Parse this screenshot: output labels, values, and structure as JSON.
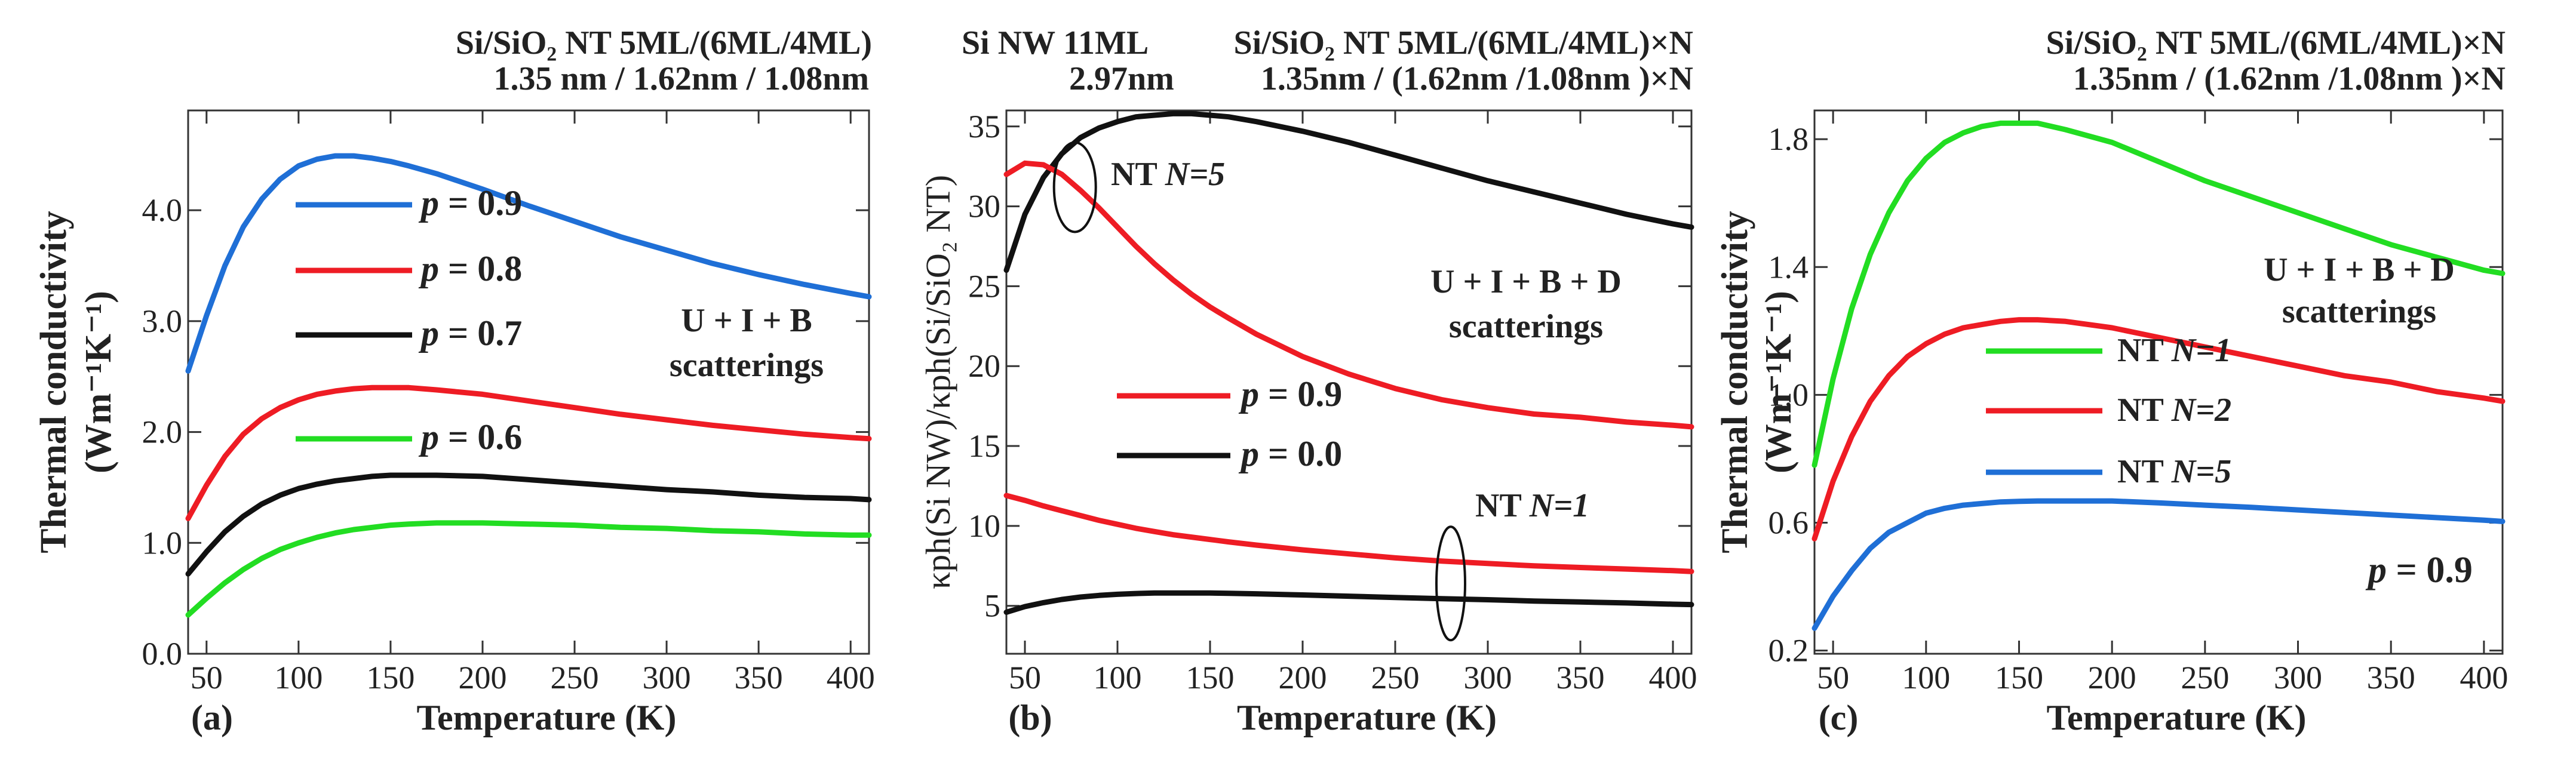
{
  "colors": {
    "blue": "#1f6fd6",
    "red": "#ee1c24",
    "black": "#111111",
    "green": "#22dd22"
  },
  "chart_data": [
    {
      "type": "line",
      "panel_label": "(a)",
      "title_line1": "Si/SiO₂ NT  5ML/(6ML/4ML)",
      "title_line2": "1.35 nm / 1.62nm  / 1.08nm",
      "xlabel": "Temperature (K)",
      "ylabel": "Thermal conductivity",
      "ylabel_units": "(Wm⁻¹K⁻¹)",
      "xlim": [
        40,
        410
      ],
      "ylim": [
        0,
        4.9
      ],
      "xticks": [
        50,
        100,
        150,
        200,
        250,
        300,
        350,
        400
      ],
      "yticks": [
        0,
        1,
        2,
        3,
        4
      ],
      "yticklabels": [
        "0.0",
        "1.0",
        "2.0",
        "3.0",
        "4.0"
      ],
      "annotation": [
        "U + I + B",
        "scatterings"
      ],
      "x": [
        40,
        50,
        60,
        70,
        80,
        90,
        100,
        110,
        120,
        130,
        140,
        150,
        160,
        175,
        200,
        225,
        250,
        275,
        300,
        325,
        350,
        375,
        400,
        410
      ],
      "series": [
        {
          "name": "p = 0.9",
          "legend_prefix": "p",
          "legend_value": " = 0.9",
          "color": "#1f6fd6",
          "values": [
            2.55,
            3.05,
            3.5,
            3.85,
            4.1,
            4.28,
            4.4,
            4.46,
            4.49,
            4.49,
            4.47,
            4.44,
            4.4,
            4.33,
            4.19,
            4.04,
            3.9,
            3.76,
            3.64,
            3.52,
            3.42,
            3.33,
            3.25,
            3.22
          ]
        },
        {
          "name": "p = 0.8",
          "legend_prefix": "p",
          "legend_value": " = 0.8",
          "color": "#ee1c24",
          "values": [
            1.22,
            1.52,
            1.78,
            1.98,
            2.12,
            2.22,
            2.29,
            2.34,
            2.37,
            2.39,
            2.4,
            2.4,
            2.4,
            2.38,
            2.34,
            2.28,
            2.22,
            2.16,
            2.11,
            2.06,
            2.02,
            1.98,
            1.95,
            1.94
          ]
        },
        {
          "name": "p = 0.7",
          "legend_prefix": "p",
          "legend_value": " = 0.7",
          "color": "#111111",
          "values": [
            0.72,
            0.92,
            1.1,
            1.24,
            1.35,
            1.43,
            1.49,
            1.53,
            1.56,
            1.58,
            1.6,
            1.61,
            1.61,
            1.61,
            1.6,
            1.57,
            1.54,
            1.51,
            1.48,
            1.46,
            1.43,
            1.41,
            1.4,
            1.39
          ]
        },
        {
          "name": "p = 0.6",
          "legend_prefix": "p",
          "legend_value": " = 0.6",
          "color": "#22dd22",
          "values": [
            0.35,
            0.5,
            0.64,
            0.76,
            0.86,
            0.94,
            1.0,
            1.05,
            1.09,
            1.12,
            1.14,
            1.16,
            1.17,
            1.18,
            1.18,
            1.17,
            1.16,
            1.14,
            1.13,
            1.11,
            1.1,
            1.08,
            1.07,
            1.07
          ]
        }
      ]
    },
    {
      "type": "line",
      "panel_label": "(b)",
      "title_left_line1": "Si NW 11ML",
      "title_left_line2": "2.97nm",
      "title_right_line1": "Si/SiO₂ NT  5ML/(6ML/4ML)×N",
      "title_right_line2": "1.35nm / (1.62nm /1.08nm )×N",
      "xlabel": "Temperature (K)",
      "ylabel": "κph(Si NW)/κph(Si/SiO₂ NT)",
      "xlim": [
        40,
        410
      ],
      "ylim": [
        2,
        36
      ],
      "xticks": [
        50,
        100,
        150,
        200,
        250,
        300,
        350,
        400
      ],
      "yticks": [
        5,
        10,
        15,
        20,
        25,
        30,
        35
      ],
      "yticklabels": [
        "5",
        "10",
        "15",
        "20",
        "25",
        "30",
        "35"
      ],
      "annotation": [
        "U + I + B + D",
        "scatterings"
      ],
      "group_labels": [
        "NT N=5",
        "NT N=1"
      ],
      "x": [
        40,
        50,
        60,
        70,
        80,
        90,
        100,
        110,
        120,
        130,
        140,
        150,
        160,
        175,
        200,
        225,
        250,
        275,
        300,
        325,
        350,
        375,
        400,
        410
      ],
      "series": [
        {
          "name": "p = 0.0 (NT N=5)",
          "legend_prefix": "p",
          "legend_value": " = 0.0",
          "color": "#111111",
          "values": [
            26,
            29.5,
            31.8,
            33.3,
            34.3,
            34.9,
            35.3,
            35.6,
            35.7,
            35.8,
            35.8,
            35.7,
            35.6,
            35.3,
            34.7,
            34.0,
            33.2,
            32.4,
            31.6,
            30.9,
            30.2,
            29.5,
            28.9,
            28.7
          ]
        },
        {
          "name": "p = 0.9 (NT N=5)",
          "legend_prefix": "p",
          "legend_value": " = 0.9",
          "color": "#ee1c24",
          "values": [
            32.0,
            32.7,
            32.6,
            32.0,
            31.0,
            29.9,
            28.7,
            27.5,
            26.4,
            25.4,
            24.5,
            23.7,
            23.0,
            22.0,
            20.6,
            19.5,
            18.6,
            17.9,
            17.4,
            17.0,
            16.8,
            16.5,
            16.3,
            16.2
          ]
        },
        {
          "name": "p = 0.9 (NT N=1)",
          "color": "#ee1c24",
          "values": [
            11.9,
            11.6,
            11.25,
            10.95,
            10.65,
            10.35,
            10.1,
            9.85,
            9.65,
            9.45,
            9.3,
            9.15,
            9.0,
            8.8,
            8.5,
            8.25,
            8.0,
            7.8,
            7.65,
            7.5,
            7.4,
            7.3,
            7.2,
            7.15
          ]
        },
        {
          "name": "p = 0.0 (NT N=1)",
          "color": "#111111",
          "values": [
            4.6,
            4.95,
            5.2,
            5.4,
            5.55,
            5.65,
            5.72,
            5.77,
            5.8,
            5.8,
            5.8,
            5.8,
            5.78,
            5.75,
            5.68,
            5.6,
            5.52,
            5.45,
            5.38,
            5.3,
            5.24,
            5.18,
            5.1,
            5.08
          ]
        }
      ]
    },
    {
      "type": "line",
      "panel_label": "(c)",
      "title_line1": "Si/SiO₂ NT  5ML/(6ML/4ML)×N",
      "title_line2": "1.35nm / (1.62nm /1.08nm )×N",
      "xlabel": "Temperature (K)",
      "ylabel": "Thermal conductivity",
      "ylabel_units": "(Wm⁻¹K⁻¹)",
      "xlim": [
        40,
        410
      ],
      "ylim": [
        0.19,
        1.89
      ],
      "xticks": [
        50,
        100,
        150,
        200,
        250,
        300,
        350,
        400
      ],
      "yticks": [
        0.2,
        0.6,
        1.0,
        1.4,
        1.8
      ],
      "yticklabels": [
        "0.2",
        "0.6",
        "1.0",
        "1.4",
        "1.8"
      ],
      "annotation": [
        "U + I + B + D",
        "scatterings"
      ],
      "note_prefix": "p",
      "note_value": " = 0.9",
      "x": [
        40,
        50,
        60,
        70,
        80,
        90,
        100,
        110,
        120,
        130,
        140,
        150,
        160,
        175,
        200,
        225,
        250,
        275,
        300,
        325,
        350,
        375,
        400,
        410
      ],
      "series": [
        {
          "name": "NT N=1",
          "legend_prefix": "NT ",
          "legend_value": "N=1",
          "color": "#22dd22",
          "values": [
            0.78,
            1.05,
            1.27,
            1.44,
            1.57,
            1.67,
            1.74,
            1.79,
            1.82,
            1.84,
            1.85,
            1.85,
            1.85,
            1.83,
            1.79,
            1.73,
            1.67,
            1.62,
            1.57,
            1.52,
            1.47,
            1.43,
            1.39,
            1.38
          ]
        },
        {
          "name": "NT N=2",
          "legend_prefix": "NT ",
          "legend_value": "N=2",
          "color": "#ee1c24",
          "values": [
            0.55,
            0.73,
            0.87,
            0.98,
            1.06,
            1.12,
            1.16,
            1.19,
            1.21,
            1.22,
            1.23,
            1.235,
            1.235,
            1.23,
            1.21,
            1.18,
            1.15,
            1.12,
            1.09,
            1.06,
            1.04,
            1.01,
            0.99,
            0.98
          ]
        },
        {
          "name": "NT N=5",
          "legend_prefix": "NT ",
          "legend_value": "N=5",
          "color": "#1f6fd6",
          "values": [
            0.27,
            0.37,
            0.45,
            0.52,
            0.57,
            0.6,
            0.63,
            0.645,
            0.655,
            0.66,
            0.665,
            0.667,
            0.668,
            0.668,
            0.668,
            0.662,
            0.655,
            0.648,
            0.64,
            0.632,
            0.624,
            0.616,
            0.608,
            0.604
          ]
        }
      ]
    }
  ]
}
